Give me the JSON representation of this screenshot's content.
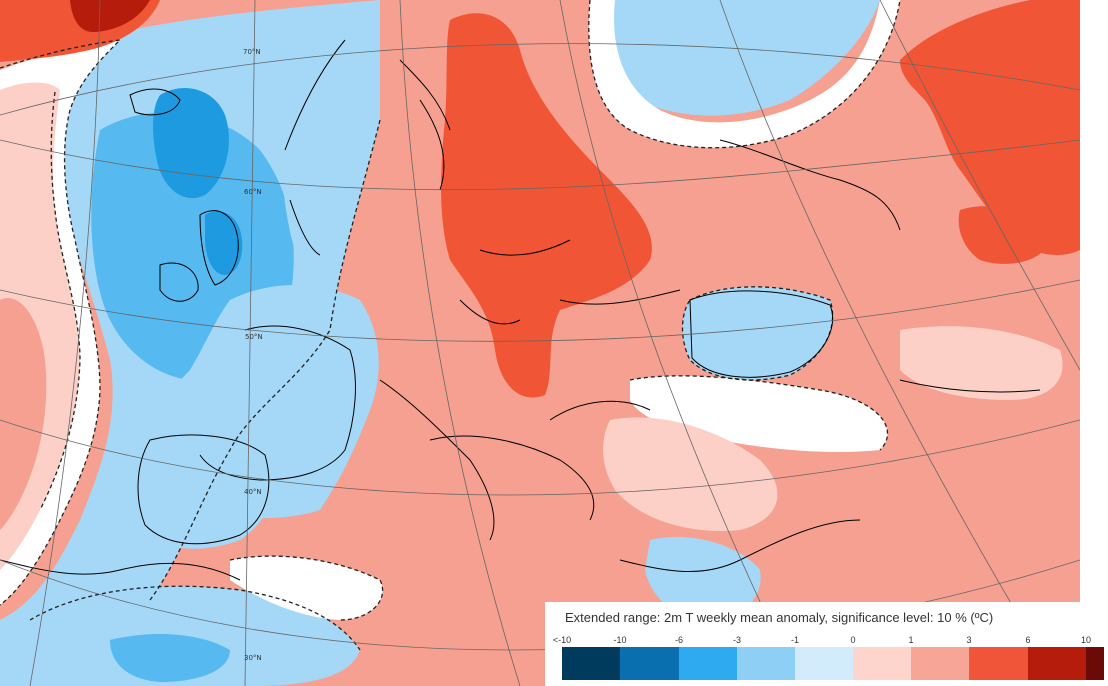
{
  "map": {
    "latitude_labels": [
      "70°N",
      "60°N",
      "50°N",
      "40°N",
      "30°N"
    ],
    "colors": {
      "sea_blue_light": "#cfe9fb",
      "blue_1": "#a5d8f7",
      "blue_3": "#56b9f0",
      "blue_6": "#1e9be0",
      "white": "#ffffff",
      "pink_1": "#fcd0c6",
      "salmon_3": "#f5a090",
      "red_6": "#f05535",
      "coast": "#000000",
      "grid": "#666666"
    }
  },
  "legend": {
    "title": "Extended range: 2m T weekly mean anomaly, significance level: 10 % (ºC)",
    "ticks": [
      "<-10",
      "-10",
      "-6",
      "-3",
      "-1",
      "0",
      "1",
      "3",
      "6",
      "10"
    ],
    "swatches": [
      "#003a5c",
      "#0a6fae",
      "#2eaaf0",
      "#8dcff5",
      "#d3ecfb",
      "#fdd5cc",
      "#f6a596",
      "#f0553a",
      "#b51c0c",
      "#6b0a06"
    ]
  }
}
